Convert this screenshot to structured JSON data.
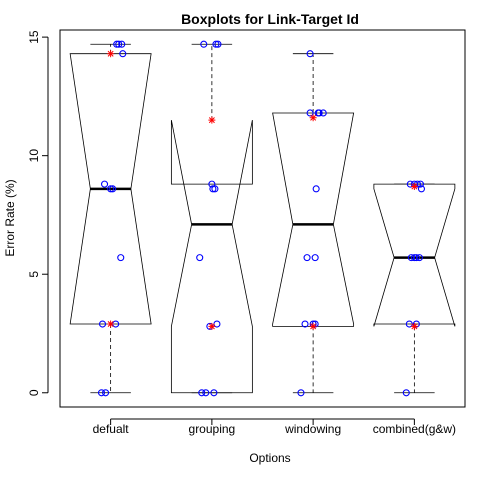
{
  "chart_data": {
    "type": "boxplot",
    "notched": true,
    "title": "Boxplots for Link-Target Id",
    "xlabel": "Options",
    "ylabel": "Error Rate (%)",
    "ylim": [
      -0.6,
      15.3
    ],
    "yticks": [
      0,
      5,
      10,
      15
    ],
    "categories": [
      "defualt",
      "grouping",
      "windowing",
      "combined(g&w)"
    ],
    "boxes": [
      {
        "lower_whisker": 0.0,
        "q1": 2.9,
        "median": 8.6,
        "q3": 14.3,
        "upper_whisker": 14.7,
        "notch_lower": 2.9,
        "notch_upper": 14.3
      },
      {
        "lower_whisker": 0.0,
        "q1": 0.0,
        "median": 7.1,
        "q3": 8.8,
        "upper_whisker": 14.7,
        "notch_lower": 2.8,
        "notch_upper": 11.5
      },
      {
        "lower_whisker": 0.0,
        "q1": 2.8,
        "median": 7.1,
        "q3": 11.8,
        "upper_whisker": 14.3,
        "notch_lower": 2.9,
        "notch_upper": 11.8
      },
      {
        "lower_whisker": 0.0,
        "q1": 2.9,
        "median": 5.7,
        "q3": 8.8,
        "upper_whisker": 8.8,
        "notch_lower": 2.8,
        "notch_upper": 8.6
      }
    ],
    "points": [
      {
        "category": 0,
        "jitter": [
          -0.09,
          -0.05,
          0.12,
          0.06,
          0.08,
          0.1,
          -0.06,
          0.02,
          0.0,
          -0.08,
          0.05,
          0.11
        ],
        "values": [
          0.0,
          0.0,
          14.3,
          14.7,
          14.7,
          5.7,
          8.8,
          8.6,
          8.6,
          2.9,
          2.9,
          14.7
        ]
      },
      {
        "category": 1,
        "jitter": [
          -0.1,
          -0.06,
          0.02,
          0.05,
          -0.02,
          0.01,
          0.0,
          0.03,
          -0.12,
          -0.08,
          0.06,
          0.04
        ],
        "values": [
          0.0,
          0.0,
          0.0,
          2.9,
          2.8,
          8.6,
          8.8,
          8.6,
          5.7,
          14.7,
          14.7,
          14.7
        ]
      },
      {
        "category": 2,
        "jitter": [
          -0.12,
          -0.08,
          0.0,
          0.02,
          -0.06,
          0.03,
          0.1,
          -0.03,
          0.06,
          -0.03,
          0.02,
          0.05
        ],
        "values": [
          0.0,
          2.9,
          2.9,
          5.7,
          5.7,
          8.6,
          11.8,
          11.8,
          11.8,
          14.3,
          2.9,
          11.8
        ]
      },
      {
        "category": 3,
        "jitter": [
          -0.08,
          -0.05,
          0.02,
          0.05,
          0.0,
          -0.03,
          0.06,
          0.03,
          0.07,
          -0.04,
          0.02,
          0.0
        ],
        "values": [
          0.0,
          2.9,
          2.9,
          5.7,
          5.7,
          5.7,
          8.8,
          8.8,
          8.6,
          8.8,
          5.7,
          8.8
        ]
      }
    ],
    "means": [
      {
        "category": 0,
        "value": 2.9
      },
      {
        "category": 0,
        "value": 14.3
      },
      {
        "category": 1,
        "value": 2.8
      },
      {
        "category": 1,
        "value": 11.5
      },
      {
        "category": 2,
        "value": 2.8
      },
      {
        "category": 2,
        "value": 11.6
      },
      {
        "category": 3,
        "value": 2.8
      },
      {
        "category": 3,
        "value": 8.7
      }
    ],
    "point_color": "#0000ff",
    "mean_color": "#ff0000",
    "grid": false,
    "legend": "none"
  }
}
